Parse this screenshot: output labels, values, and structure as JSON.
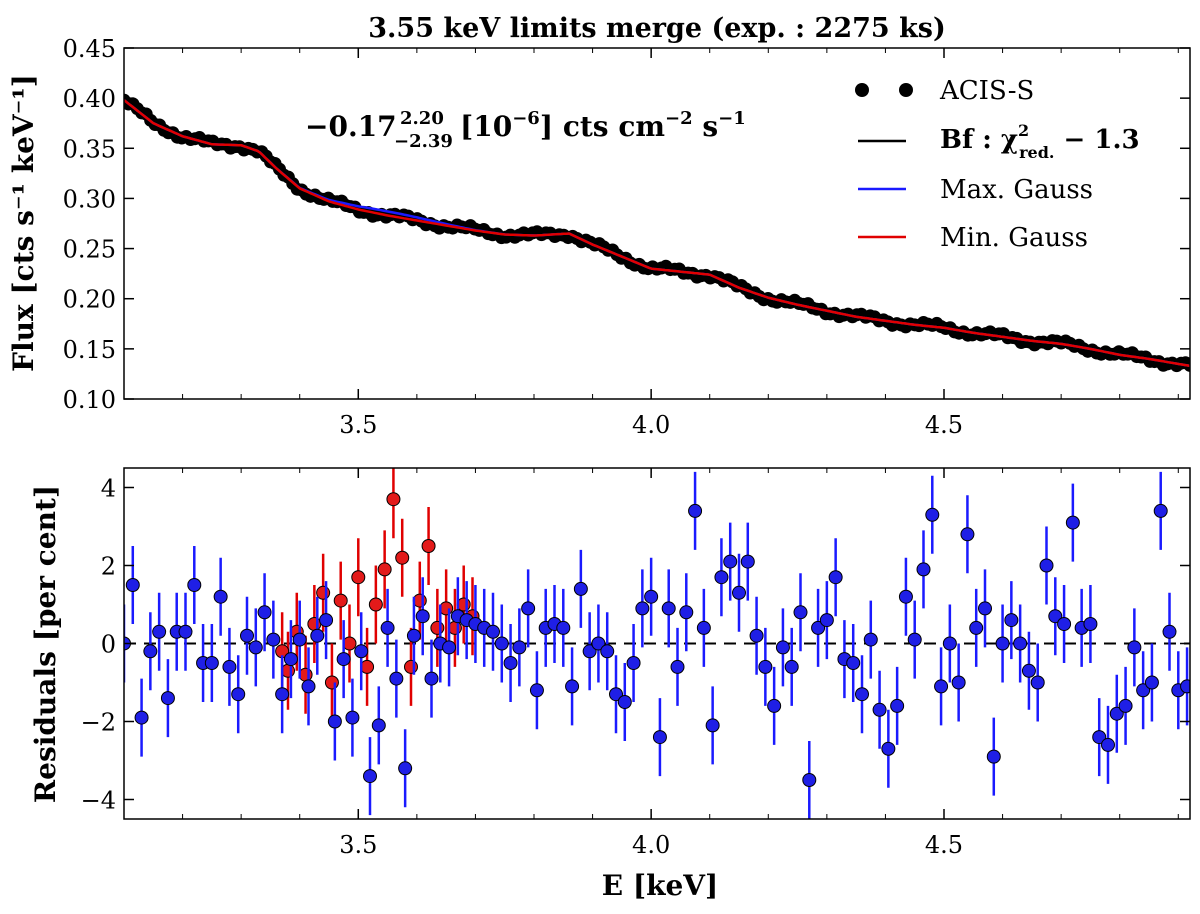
{
  "colors": {
    "data": "#000000",
    "best_fit": "#000000",
    "max_gauss": "#1a1aff",
    "min_gauss": "#e00000",
    "resid_blue": "#1a1aff",
    "resid_red": "#e00000",
    "marker_blue": "#1f1fe6",
    "marker_red": "#e31a1a"
  },
  "chart_data": [
    {
      "type": "line",
      "title": "3.55 keV limits merge (exp. : 2275 ks)",
      "xlabel": "",
      "ylabel": "Flux [cts s⁻¹ keV⁻¹]",
      "xlim": [
        3.1,
        4.92
      ],
      "ylim": [
        0.1,
        0.45
      ],
      "xticks": [
        "3.5",
        "4.0",
        "4.5"
      ],
      "xtick_values": [
        3.5,
        4.0,
        4.5
      ],
      "yticks": [
        "0.10",
        "0.15",
        "0.20",
        "0.25",
        "0.30",
        "0.35",
        "0.40",
        "0.45"
      ],
      "ytick_values": [
        0.1,
        0.15,
        0.2,
        0.25,
        0.3,
        0.35,
        0.4,
        0.45
      ],
      "annotation": {
        "value": "−0.17",
        "sup": "2.20",
        "sub": "−2.39",
        "unit_a": "[10",
        "unit_exp": "−6",
        "unit_b": "] cts cm",
        "unit_exp2": "−2",
        "unit_c": " s",
        "unit_exp3": "−1"
      },
      "legend": {
        "placement": "top-right",
        "entries": [
          {
            "label": "ACIS-S",
            "kind": "markers"
          },
          {
            "label_main": "Bf : χ",
            "label_sup": "2",
            "label_sub": "red.",
            "label_tail": " − 1.3",
            "kind": "line"
          },
          {
            "label": "Max. Gauss",
            "kind": "line"
          },
          {
            "label": "Min. Gauss",
            "kind": "line"
          }
        ]
      },
      "model_knots": {
        "x": [
          3.1,
          3.15,
          3.2,
          3.25,
          3.3,
          3.33,
          3.36,
          3.4,
          3.45,
          3.5,
          3.55,
          3.6,
          3.65,
          3.7,
          3.75,
          3.8,
          3.86,
          3.9,
          3.95,
          4.0,
          4.05,
          4.1,
          4.15,
          4.2,
          4.25,
          4.3,
          4.35,
          4.4,
          4.45,
          4.5,
          4.55,
          4.6,
          4.65,
          4.7,
          4.75,
          4.8,
          4.85,
          4.92
        ],
        "y": [
          0.398,
          0.375,
          0.362,
          0.354,
          0.353,
          0.347,
          0.33,
          0.31,
          0.297,
          0.289,
          0.283,
          0.278,
          0.273,
          0.268,
          0.264,
          0.263,
          0.265,
          0.254,
          0.242,
          0.23,
          0.227,
          0.224,
          0.211,
          0.201,
          0.194,
          0.188,
          0.182,
          0.178,
          0.174,
          0.171,
          0.166,
          0.162,
          0.158,
          0.155,
          0.15,
          0.144,
          0.14,
          0.133
        ]
      },
      "max_gauss_bump": {
        "center": 3.55,
        "sigma": 0.07,
        "amplitude": 0.004
      },
      "data_scatter_amplitude": 0.004
    },
    {
      "type": "scatter",
      "title": "",
      "xlabel": "E [keV]",
      "ylabel": "Residuals [per cent]",
      "xlim": [
        3.1,
        4.92
      ],
      "ylim": [
        -4.5,
        4.5
      ],
      "xticks": [
        "3.5",
        "4.0",
        "4.5"
      ],
      "xtick_values": [
        3.5,
        4.0,
        4.5
      ],
      "yticks": [
        "−4",
        "−2",
        "0",
        "2",
        "4"
      ],
      "ytick_values": [
        -4,
        -2,
        0,
        2,
        4
      ],
      "zero_line": true,
      "series": [
        {
          "name": "Residuals (best fit)",
          "color": "blue",
          "x": [
            3.1,
            3.115,
            3.13,
            3.145,
            3.16,
            3.175,
            3.19,
            3.205,
            3.22,
            3.235,
            3.25,
            3.265,
            3.28,
            3.295,
            3.31,
            3.325,
            3.34,
            3.355,
            3.37,
            3.385,
            3.4,
            3.415,
            3.43,
            3.445,
            3.46,
            3.475,
            3.49,
            3.505,
            3.52,
            3.535,
            3.55,
            3.565,
            3.58,
            3.595,
            3.61,
            3.625,
            3.64,
            3.655,
            3.67,
            3.685,
            3.7,
            3.715,
            3.73,
            3.745,
            3.76,
            3.775,
            3.79,
            3.805,
            3.82,
            3.835,
            3.85,
            3.865,
            3.88,
            3.895,
            3.91,
            3.925,
            3.94,
            3.955,
            3.97,
            3.985,
            4.0,
            4.015,
            4.03,
            4.045,
            4.06,
            4.075,
            4.09,
            4.105,
            4.12,
            4.135,
            4.15,
            4.165,
            4.18,
            4.195,
            4.21,
            4.225,
            4.24,
            4.255,
            4.27,
            4.285,
            4.3,
            4.315,
            4.33,
            4.345,
            4.36,
            4.375,
            4.39,
            4.405,
            4.42,
            4.435,
            4.45,
            4.465,
            4.48,
            4.495,
            4.51,
            4.525,
            4.54,
            4.555,
            4.57,
            4.585,
            4.6,
            4.615,
            4.63,
            4.645,
            4.66,
            4.675,
            4.69,
            4.705,
            4.72,
            4.735,
            4.75,
            4.765,
            4.78,
            4.795,
            4.81,
            4.825,
            4.84,
            4.855,
            4.87,
            4.885,
            4.9,
            4.915
          ],
          "y": [
            0,
            1.5,
            -1.9,
            -0.2,
            0.3,
            -1.4,
            0.3,
            0.3,
            1.5,
            -0.5,
            -0.5,
            1.2,
            -0.6,
            -1.3,
            0.2,
            -0.1,
            0.8,
            0.1,
            -1.3,
            -0.4,
            0.1,
            -1.1,
            0.2,
            0.6,
            -2.0,
            -0.4,
            -1.9,
            -0.2,
            -3.4,
            -2.1,
            0.4,
            -0.9,
            -3.2,
            0.2,
            0.7,
            -0.9,
            0,
            -0.1,
            0.7,
            0.6,
            0.5,
            0.4,
            0.3,
            0,
            -0.5,
            -0.1,
            0.9,
            -1.2,
            0.4,
            0.5,
            0.4,
            -1.1,
            1.4,
            -0.2,
            0,
            -0.2,
            -1.3,
            -1.5,
            -0.5,
            0.9,
            1.2,
            -2.4,
            0.9,
            -0.6,
            0.8,
            3.4,
            0.4,
            -2.1,
            1.7,
            2.1,
            1.3,
            2.1,
            0.2,
            -0.6,
            -1.6,
            -0.1,
            -0.6,
            0.8,
            -3.5,
            0.4,
            0.6,
            1.7,
            -0.4,
            -0.5,
            -1.3,
            0.1,
            -1.7,
            -2.7,
            -1.6,
            1.2,
            0.1,
            1.9,
            3.3,
            -1.1,
            0,
            -1.0,
            2.8,
            0.4,
            0.9,
            -2.9,
            0,
            0.6,
            0,
            -0.7,
            -1.0,
            2.0,
            0.7,
            0.5,
            3.1,
            0.4,
            0.5,
            -2.4,
            -2.6,
            -1.8,
            -1.6,
            -0.1,
            -1.2,
            -1.0,
            3.4,
            0.3,
            -1.2,
            -1.1
          ],
          "err": 1.0
        },
        {
          "name": "Residuals (min. Gauss)",
          "color": "red",
          "x": [
            3.37,
            3.38,
            3.395,
            3.41,
            3.425,
            3.44,
            3.455,
            3.47,
            3.485,
            3.5,
            3.515,
            3.53,
            3.545,
            3.56,
            3.575,
            3.59,
            3.605,
            3.62,
            3.635,
            3.65,
            3.665,
            3.68,
            3.695
          ],
          "y": [
            -0.2,
            -0.7,
            0.3,
            -0.8,
            0.5,
            1.3,
            -1.0,
            1.1,
            0,
            1.7,
            -0.6,
            1.0,
            1.9,
            3.7,
            2.2,
            -0.6,
            1.1,
            2.5,
            0.4,
            0.9,
            0.4,
            1.0,
            0.7
          ],
          "err": 1.0
        }
      ]
    }
  ]
}
